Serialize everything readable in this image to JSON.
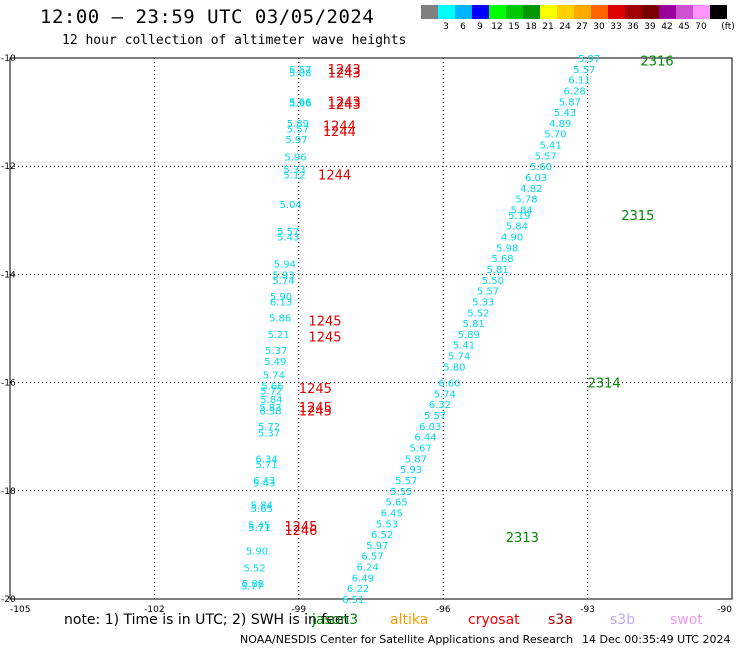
{
  "header": {
    "title": "12:00 — 23:59 UTC 03/05/2024",
    "subtitle": "12 hour collection of altimeter wave heights"
  },
  "scale": {
    "unit": "(ft)",
    "entries": [
      {
        "label": "",
        "color": "#808080"
      },
      {
        "label": "3",
        "color": "#00ffff"
      },
      {
        "label": "6",
        "color": "#00b4ff"
      },
      {
        "label": "9",
        "color": "#0000ff"
      },
      {
        "label": "12",
        "color": "#00ff00"
      },
      {
        "label": "15",
        "color": "#00c800"
      },
      {
        "label": "18",
        "color": "#009600"
      },
      {
        "label": "21",
        "color": "#ffff00"
      },
      {
        "label": "24",
        "color": "#ffd200"
      },
      {
        "label": "27",
        "color": "#ffaa00"
      },
      {
        "label": "30",
        "color": "#ff6400"
      },
      {
        "label": "33",
        "color": "#dc0000"
      },
      {
        "label": "36",
        "color": "#a00000"
      },
      {
        "label": "39",
        "color": "#780000"
      },
      {
        "label": "42",
        "color": "#9b009b"
      },
      {
        "label": "45",
        "color": "#d050d0"
      },
      {
        "label": "70",
        "color": "#ff96ff"
      },
      {
        "label": "",
        "color": "#000000"
      }
    ]
  },
  "chart_data": {
    "type": "scatter",
    "xlim": [
      -105,
      -90
    ],
    "ylim": [
      -20,
      -10
    ],
    "xticks": [
      "-105",
      "-102",
      "-99",
      "-96",
      "-93",
      "-90"
    ],
    "yticks": [
      "-10",
      "-12",
      "-14",
      "-16",
      "-18",
      "-20"
    ],
    "grid": true,
    "label_color": "#00d8ec",
    "points": [
      {
        "x": -99.2,
        "y": -10.2,
        "v": "5.57"
      },
      {
        "x": -99.2,
        "y": -10.27,
        "v": "5.08"
      },
      {
        "x": -99.2,
        "y": -10.8,
        "v": "5.66"
      },
      {
        "x": -99.2,
        "y": -10.82,
        "v": "5.96"
      },
      {
        "x": -99.25,
        "y": -11.2,
        "v": "5.89"
      },
      {
        "x": -99.25,
        "y": -11.3,
        "v": "5.57"
      },
      {
        "x": -99.28,
        "y": -11.5,
        "v": "5.97"
      },
      {
        "x": -99.3,
        "y": -11.82,
        "v": "5.96"
      },
      {
        "x": -99.32,
        "y": -12.05,
        "v": "5.33"
      },
      {
        "x": -99.32,
        "y": -12.15,
        "v": "5.12"
      },
      {
        "x": -99.4,
        "y": -12.7,
        "v": "5.04"
      },
      {
        "x": -99.45,
        "y": -13.2,
        "v": "5.57"
      },
      {
        "x": -99.45,
        "y": -13.3,
        "v": "5.43"
      },
      {
        "x": -99.52,
        "y": -13.8,
        "v": "5.94"
      },
      {
        "x": -99.55,
        "y": -14.0,
        "v": "5.93"
      },
      {
        "x": -99.55,
        "y": -14.1,
        "v": "5.74"
      },
      {
        "x": -99.6,
        "y": -14.4,
        "v": "5.90"
      },
      {
        "x": -99.6,
        "y": -14.5,
        "v": "6.13"
      },
      {
        "x": -99.62,
        "y": -14.8,
        "v": "5.86"
      },
      {
        "x": -99.65,
        "y": -15.1,
        "v": "5.21"
      },
      {
        "x": -99.7,
        "y": -15.4,
        "v": "5.37"
      },
      {
        "x": -99.72,
        "y": -15.6,
        "v": "5.49"
      },
      {
        "x": -99.75,
        "y": -15.85,
        "v": "5.74"
      },
      {
        "x": -99.78,
        "y": -16.05,
        "v": "5.66"
      },
      {
        "x": -99.8,
        "y": -16.15,
        "v": "5.72"
      },
      {
        "x": -99.8,
        "y": -16.3,
        "v": "5.84"
      },
      {
        "x": -99.82,
        "y": -16.45,
        "v": "5.83"
      },
      {
        "x": -99.82,
        "y": -16.52,
        "v": "6.38"
      },
      {
        "x": -99.85,
        "y": -16.8,
        "v": "5.72"
      },
      {
        "x": -99.85,
        "y": -16.92,
        "v": "5.37"
      },
      {
        "x": -99.9,
        "y": -17.4,
        "v": "6.34"
      },
      {
        "x": -99.9,
        "y": -17.5,
        "v": "5.71"
      },
      {
        "x": -99.95,
        "y": -17.8,
        "v": "6.43"
      },
      {
        "x": -99.95,
        "y": -17.85,
        "v": "5.43"
      },
      {
        "x": -100.0,
        "y": -18.25,
        "v": "5.84"
      },
      {
        "x": -100.0,
        "y": -18.32,
        "v": "5.65"
      },
      {
        "x": -100.05,
        "y": -18.62,
        "v": "5.45"
      },
      {
        "x": -100.05,
        "y": -18.67,
        "v": "5.71"
      },
      {
        "x": -100.1,
        "y": -19.1,
        "v": "5.90"
      },
      {
        "x": -100.15,
        "y": -19.42,
        "v": "5.52"
      },
      {
        "x": -100.18,
        "y": -19.7,
        "v": "5.88"
      },
      {
        "x": -100.2,
        "y": -19.75,
        "v": "5.77"
      },
      {
        "x": -93.2,
        "y": -10.0,
        "v": "5.97"
      },
      {
        "x": -93.3,
        "y": -10.2,
        "v": "5.57"
      },
      {
        "x": -93.4,
        "y": -10.4,
        "v": "6.11"
      },
      {
        "x": -93.5,
        "y": -10.6,
        "v": "6.28"
      },
      {
        "x": -93.6,
        "y": -10.8,
        "v": "5.87"
      },
      {
        "x": -93.7,
        "y": -11.0,
        "v": "5.43"
      },
      {
        "x": -93.8,
        "y": -11.2,
        "v": "4.89"
      },
      {
        "x": -93.9,
        "y": -11.4,
        "v": "5.70"
      },
      {
        "x": -94.0,
        "y": -11.6,
        "v": "5.41"
      },
      {
        "x": -94.1,
        "y": -11.8,
        "v": "5.57"
      },
      {
        "x": -94.2,
        "y": -12.0,
        "v": "5.60"
      },
      {
        "x": -94.3,
        "y": -12.2,
        "v": "6.03"
      },
      {
        "x": -94.4,
        "y": -12.4,
        "v": "4.82"
      },
      {
        "x": -94.5,
        "y": -12.6,
        "v": "5.78"
      },
      {
        "x": -94.6,
        "y": -12.8,
        "v": "5.84"
      },
      {
        "x": -94.65,
        "y": -12.9,
        "v": "5.19"
      },
      {
        "x": -94.7,
        "y": -13.1,
        "v": "5.84"
      },
      {
        "x": -94.8,
        "y": -13.3,
        "v": "4.90"
      },
      {
        "x": -94.9,
        "y": -13.5,
        "v": "5.98"
      },
      {
        "x": -95.0,
        "y": -13.7,
        "v": "5.68"
      },
      {
        "x": -95.1,
        "y": -13.9,
        "v": "5.81"
      },
      {
        "x": -95.2,
        "y": -14.1,
        "v": "5.50"
      },
      {
        "x": -95.3,
        "y": -14.3,
        "v": "5.57"
      },
      {
        "x": -95.4,
        "y": -14.5,
        "v": "5.33"
      },
      {
        "x": -95.5,
        "y": -14.7,
        "v": "5.52"
      },
      {
        "x": -95.6,
        "y": -14.9,
        "v": "5.81"
      },
      {
        "x": -95.7,
        "y": -15.1,
        "v": "5.89"
      },
      {
        "x": -95.8,
        "y": -15.3,
        "v": "5.41"
      },
      {
        "x": -95.9,
        "y": -15.5,
        "v": "5.74"
      },
      {
        "x": -96.0,
        "y": -15.7,
        "v": "5.80"
      },
      {
        "x": -96.1,
        "y": -16.0,
        "v": "6.60"
      },
      {
        "x": -96.2,
        "y": -16.2,
        "v": "5.74"
      },
      {
        "x": -96.3,
        "y": -16.4,
        "v": "6.32"
      },
      {
        "x": -96.4,
        "y": -16.6,
        "v": "5.57"
      },
      {
        "x": -96.5,
        "y": -16.8,
        "v": "6.03"
      },
      {
        "x": -96.6,
        "y": -17.0,
        "v": "6.44"
      },
      {
        "x": -96.7,
        "y": -17.2,
        "v": "5.67"
      },
      {
        "x": -96.8,
        "y": -17.4,
        "v": "5.87"
      },
      {
        "x": -96.9,
        "y": -17.6,
        "v": "5.93"
      },
      {
        "x": -97.0,
        "y": -17.8,
        "v": "5.57"
      },
      {
        "x": -97.1,
        "y": -18.0,
        "v": "5.55"
      },
      {
        "x": -97.2,
        "y": -18.2,
        "v": "5.65"
      },
      {
        "x": -97.3,
        "y": -18.4,
        "v": "6.45"
      },
      {
        "x": -97.4,
        "y": -18.6,
        "v": "5.53"
      },
      {
        "x": -97.5,
        "y": -18.8,
        "v": "6.52"
      },
      {
        "x": -97.6,
        "y": -19.0,
        "v": "5.97"
      },
      {
        "x": -97.7,
        "y": -19.2,
        "v": "6.57"
      },
      {
        "x": -97.8,
        "y": -19.4,
        "v": "6.24"
      },
      {
        "x": -97.9,
        "y": -19.6,
        "v": "6.49"
      },
      {
        "x": -98.0,
        "y": -19.8,
        "v": "6.22"
      },
      {
        "x": -98.1,
        "y": -20.0,
        "v": "6.51"
      }
    ],
    "time_labels": [
      {
        "x": -98.4,
        "y": -10.2,
        "v": "1243",
        "color": "#dd0000"
      },
      {
        "x": -98.4,
        "y": -10.27,
        "v": "1243",
        "color": "#dd0000"
      },
      {
        "x": -98.4,
        "y": -10.8,
        "v": "1243",
        "color": "#dd0000"
      },
      {
        "x": -98.4,
        "y": -10.85,
        "v": "1243",
        "color": "#dd0000"
      },
      {
        "x": -98.5,
        "y": -11.25,
        "v": "1244",
        "color": "#dd0000"
      },
      {
        "x": -98.5,
        "y": -11.35,
        "v": "1244",
        "color": "#dd0000"
      },
      {
        "x": -98.6,
        "y": -12.15,
        "v": "1244",
        "color": "#dd0000"
      },
      {
        "x": -98.8,
        "y": -14.85,
        "v": "1245",
        "color": "#dd0000"
      },
      {
        "x": -98.8,
        "y": -15.15,
        "v": "1245",
        "color": "#dd0000"
      },
      {
        "x": -99.0,
        "y": -16.1,
        "v": "1245",
        "color": "#dd0000"
      },
      {
        "x": -99.0,
        "y": -16.45,
        "v": "1245",
        "color": "#dd0000"
      },
      {
        "x": -99.0,
        "y": -16.52,
        "v": "1245",
        "color": "#dd0000"
      },
      {
        "x": -99.3,
        "y": -18.65,
        "v": "1245",
        "color": "#dd0000"
      },
      {
        "x": -99.3,
        "y": -18.72,
        "v": "1246",
        "color": "#dd0000"
      },
      {
        "x": -91.9,
        "y": -10.05,
        "v": "2316",
        "color": "#008800"
      },
      {
        "x": -92.3,
        "y": -12.9,
        "v": "2315",
        "color": "#008800"
      },
      {
        "x": -93.0,
        "y": -16.0,
        "v": "2314",
        "color": "#008800"
      },
      {
        "x": -94.7,
        "y": -18.85,
        "v": "2313",
        "color": "#008800"
      }
    ]
  },
  "footer": {
    "note": "note:  1) Time is in UTC; 2) SWH is in feet",
    "satellites": [
      {
        "name": "jason3",
        "color": "#008800"
      },
      {
        "name": "altika",
        "color": "#ff9900"
      },
      {
        "name": "cryosat",
        "color": "#ee0000"
      },
      {
        "name": "s3a",
        "color": "#aa0000"
      },
      {
        "name": "s3b",
        "color": "#bbaaee"
      },
      {
        "name": "swot",
        "color": "#ee99ee"
      }
    ],
    "credit": "NOAA/NESDIS Center for Satellite Applications and Research",
    "timestamp": "14 Dec 00:35:49 UTC 2024"
  }
}
